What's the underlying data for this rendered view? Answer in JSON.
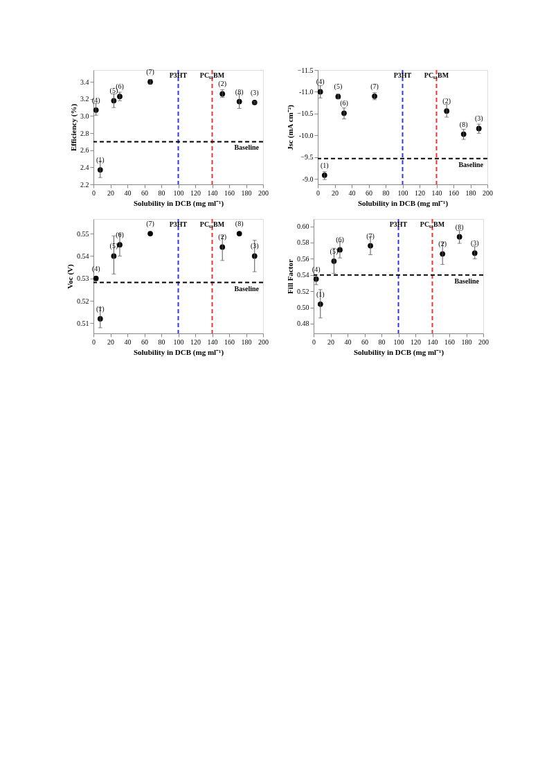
{
  "chart_data": [
    {
      "type": "scatter",
      "xlabel": "Solubility in DCB (mg ml⁻¹)",
      "ylabel": "Efficiency (%)",
      "x": [
        3,
        8,
        24,
        31,
        67,
        152,
        172,
        190
      ],
      "series": [
        {
          "color": "#000000",
          "values": [
            3.07,
            2.37,
            3.18,
            3.23,
            3.4,
            3.26,
            3.17,
            3.16
          ],
          "errors": [
            [
              3.01,
              3.15
            ],
            [
              2.28,
              2.47
            ],
            [
              3.1,
              3.26
            ],
            [
              3.18,
              3.28
            ],
            [
              3.38,
              3.43
            ],
            [
              3.22,
              3.31
            ],
            [
              3.09,
              3.26
            ],
            [
              3.15,
              3.17
            ]
          ]
        }
      ],
      "xlim": [
        0,
        200
      ],
      "xticks": [
        0,
        20,
        40,
        60,
        80,
        100,
        120,
        140,
        160,
        180,
        200
      ],
      "ylim": [
        2.2,
        3.54
      ],
      "yticks": [
        2.2,
        2.4,
        2.6,
        2.8,
        {
          "value": 3.0,
          "label": "3.0"
        },
        3.2,
        3.4
      ],
      "ref_lines": [
        {
          "axis": "x",
          "value": 100,
          "label": "P3HT",
          "color": "#3333ee",
          "line_style": "dashed"
        },
        {
          "axis": "x",
          "value": 140,
          "label": "PC₆₁BM",
          "color": "#ee3333",
          "line_style": "dashed"
        },
        {
          "axis": "y",
          "value": 2.7,
          "label": "Baseline",
          "color": "#000000",
          "line_style": "dashed"
        }
      ],
      "annotations": [
        {
          "text": "(4)",
          "x": 3,
          "y": 3.07
        },
        {
          "text": "(1)",
          "x": 8,
          "y": 2.37
        },
        {
          "text": "(5)",
          "x": 24,
          "y": 3.18
        },
        {
          "text": "(6)",
          "x": 31,
          "y": 3.23
        },
        {
          "text": "(7)",
          "x": 67,
          "y": 3.4
        },
        {
          "text": "(2)",
          "x": 152,
          "y": 3.26
        },
        {
          "text": "(8)",
          "x": 172,
          "y": 3.17
        },
        {
          "text": "(3)",
          "x": 190,
          "y": 3.16
        }
      ],
      "marker": "circle",
      "grid": false
    },
    {
      "type": "scatter",
      "xlabel": "Solubility in DCB (mg ml⁻¹)",
      "ylabel": "Jsc (mA cm⁻²)",
      "x": [
        3,
        8,
        24,
        31,
        67,
        152,
        172,
        190
      ],
      "series": [
        {
          "color": "#000000",
          "values": [
            -11.0,
            -9.09,
            -10.89,
            -10.51,
            -10.9,
            -10.56,
            -10.03,
            -10.16
          ],
          "errors": [
            [
              -11.14,
              -10.86
            ],
            [
              -9.17,
              -8.99
            ],
            [
              -10.95,
              -10.84
            ],
            [
              -10.63,
              -10.38
            ],
            [
              -10.98,
              -10.82
            ],
            [
              -10.71,
              -10.42
            ],
            [
              -10.14,
              -9.91
            ],
            [
              -10.26,
              -10.05
            ]
          ]
        }
      ],
      "xlim": [
        0,
        200
      ],
      "xticks": [
        0,
        20,
        40,
        60,
        80,
        100,
        120,
        140,
        160,
        180,
        200
      ],
      "ylim": [
        -8.88,
        -11.5
      ],
      "yticks": [
        {
          "value": -9.0,
          "label": "-9.0"
        },
        -9.5,
        {
          "value": -10.0,
          "label": "-10.0"
        },
        -10.5,
        {
          "value": -11.0,
          "label": "-11.0"
        },
        -11.5
      ],
      "ref_lines": [
        {
          "axis": "x",
          "value": 100,
          "label": "P3HT",
          "color": "#3333ee",
          "line_style": "dashed"
        },
        {
          "axis": "x",
          "value": 140,
          "label": "PC₆₁BM",
          "color": "#ee3333",
          "line_style": "dashed"
        },
        {
          "axis": "y",
          "value": -9.47,
          "label": "Baseline",
          "color": "#000000",
          "line_style": "dashed"
        }
      ],
      "annotations": [
        {
          "text": "(4)",
          "x": 3,
          "y": -11.0
        },
        {
          "text": "(1)",
          "x": 8,
          "y": -9.09
        },
        {
          "text": "(5)",
          "x": 24,
          "y": -10.89
        },
        {
          "text": "(6)",
          "x": 31,
          "y": -10.51
        },
        {
          "text": "(7)",
          "x": 67,
          "y": -10.9
        },
        {
          "text": "(2)",
          "x": 152,
          "y": -10.56
        },
        {
          "text": "(8)",
          "x": 172,
          "y": -10.03
        },
        {
          "text": "(3)",
          "x": 190,
          "y": -10.16
        }
      ],
      "marker": "circle",
      "grid": false
    },
    {
      "type": "scatter",
      "xlabel": "Solubility in DCB (mg ml⁻¹)",
      "ylabel": "Voc (V)",
      "x": [
        3,
        8,
        24,
        31,
        67,
        152,
        172,
        190
      ],
      "series": [
        {
          "color": "#000000",
          "values": [
            0.53,
            0.512,
            0.54,
            0.545,
            0.55,
            0.544,
            0.55,
            0.54
          ],
          "errors": [
            null,
            [
              0.508,
              0.517
            ],
            [
              0.532,
              0.549
            ],
            [
              0.54,
              0.55
            ],
            null,
            [
              0.538,
              0.549
            ],
            null,
            [
              0.533,
              0.547
            ]
          ]
        }
      ],
      "xlim": [
        0,
        200
      ],
      "xticks": [
        0,
        20,
        40,
        60,
        80,
        100,
        120,
        140,
        160,
        180,
        200
      ],
      "ylim": [
        0.5055,
        0.5565
      ],
      "yticks": [
        0.51,
        0.52,
        0.53,
        0.54,
        0.55
      ],
      "ref_lines": [
        {
          "axis": "x",
          "value": 100,
          "label": "P3HT",
          "color": "#3333ee",
          "line_style": "dashed"
        },
        {
          "axis": "x",
          "value": 140,
          "label": "PC₆₁BM",
          "color": "#ee3333",
          "line_style": "dashed"
        },
        {
          "axis": "y",
          "value": 0.5282,
          "label": "Baseline",
          "color": "#000000",
          "line_style": "dashed"
        }
      ],
      "annotations": [
        {
          "text": "(4)",
          "x": 3,
          "y": 0.53
        },
        {
          "text": "(1)",
          "x": 8,
          "y": 0.512
        },
        {
          "text": "(5)",
          "x": 24,
          "y": 0.54
        },
        {
          "text": "(6)",
          "x": 31,
          "y": 0.545
        },
        {
          "text": "(7)",
          "x": 67,
          "y": 0.55
        },
        {
          "text": "(2)",
          "x": 152,
          "y": 0.544
        },
        {
          "text": "(8)",
          "x": 172,
          "y": 0.55
        },
        {
          "text": "(3)",
          "x": 190,
          "y": 0.54
        }
      ],
      "marker": "circle",
      "grid": false
    },
    {
      "type": "scatter",
      "xlabel": "Solubility in DCB (mg ml⁻¹)",
      "ylabel": "Fill Factor",
      "x": [
        3,
        8,
        24,
        31,
        67,
        152,
        172,
        190
      ],
      "series": [
        {
          "color": "#000000",
          "values": [
            0.535,
            0.504,
            0.557,
            0.571,
            0.576,
            0.566,
            0.587,
            0.567
          ],
          "errors": [
            [
              0.528,
              0.54
            ],
            [
              0.487,
              0.522
            ],
            [
              0.542,
              0.573
            ],
            [
              0.561,
              0.581
            ],
            [
              0.565,
              0.587
            ],
            [
              0.553,
              0.58
            ],
            [
              0.579,
              0.595
            ],
            [
              0.56,
              0.575
            ]
          ]
        }
      ],
      "xlim": [
        0,
        200
      ],
      "xticks": [
        0,
        20,
        40,
        60,
        80,
        100,
        120,
        140,
        160,
        180,
        200
      ],
      "ylim": [
        0.468,
        0.609
      ],
      "yticks": [
        0.48,
        {
          "value": 0.5,
          "label": "0.50"
        },
        0.52,
        0.54,
        0.56,
        0.58,
        {
          "value": 0.6,
          "label": "0.60"
        }
      ],
      "ref_lines": [
        {
          "axis": "x",
          "value": 100,
          "label": "P3HT",
          "color": "#3333ee",
          "line_style": "dashed"
        },
        {
          "axis": "x",
          "value": 140,
          "label": "PC₆₁BM",
          "color": "#ee3333",
          "line_style": "dashed"
        },
        {
          "axis": "y",
          "value": 0.54,
          "label": "Baseline",
          "color": "#000000",
          "line_style": "dashed"
        }
      ],
      "annotations": [
        {
          "text": "(4)",
          "x": 3,
          "y": 0.535
        },
        {
          "text": "(1)",
          "x": 8,
          "y": 0.504
        },
        {
          "text": "(5)",
          "x": 24,
          "y": 0.557
        },
        {
          "text": "(6)",
          "x": 31,
          "y": 0.571
        },
        {
          "text": "(7)",
          "x": 67,
          "y": 0.576
        },
        {
          "text": "(2)",
          "x": 152,
          "y": 0.566
        },
        {
          "text": "(8)",
          "x": 172,
          "y": 0.587
        },
        {
          "text": "(3)",
          "x": 190,
          "y": 0.567
        }
      ],
      "marker": "circle",
      "grid": false
    }
  ]
}
